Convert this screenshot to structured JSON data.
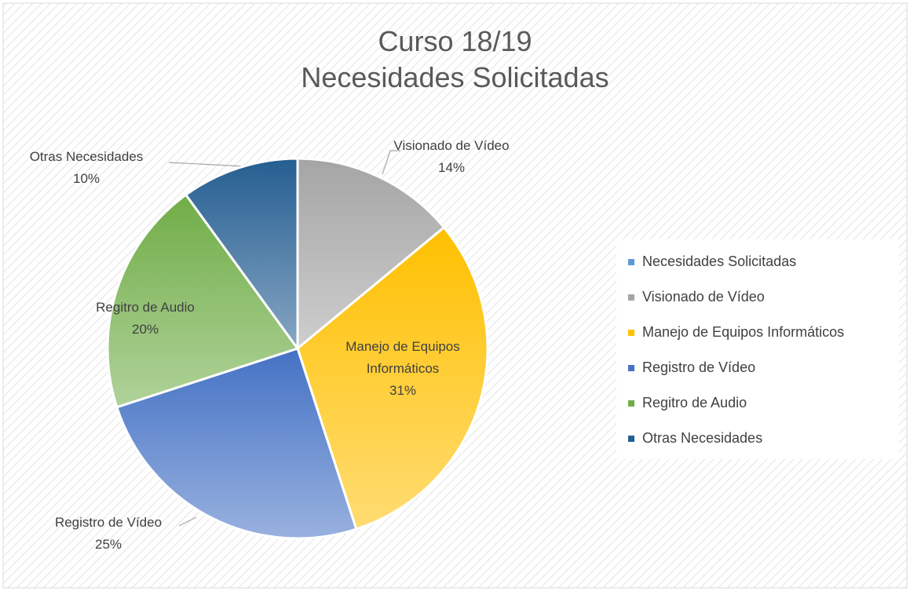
{
  "chart_data": {
    "type": "pie",
    "title": [
      "Curso 18/19",
      "Necesidades Solicitadas"
    ],
    "categories": [
      "Necesidades Solicitadas",
      "Visionado de Vídeo",
      "Manejo de Equipos Informáticos",
      "Registro de Vídeo",
      "Regitro de Audio",
      "Otras Necesidades"
    ],
    "values": [
      0,
      14,
      31,
      25,
      20,
      10
    ],
    "value_labels": [
      null,
      "14%",
      "31%",
      "25%",
      "20%",
      "10%"
    ],
    "colors": [
      "#5b9bd5",
      "#a5a5a5",
      "#ffc000",
      "#4472c4",
      "#70ad47",
      "#255e91"
    ],
    "legend": "right"
  }
}
